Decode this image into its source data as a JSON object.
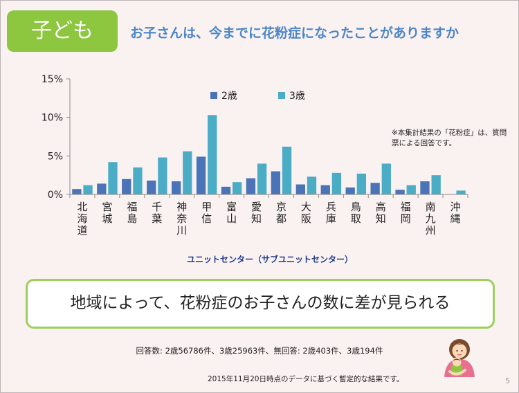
{
  "tag": "子ども",
  "title": "お子さんは、今までに花粉症になったことがありますか",
  "note": "※本集計結果の「花粉症」は、質問票による回答です。",
  "callout": "地域によって、花粉症のお子さんの数に差が見られる",
  "respondents": "回答数: 2歳56786件、3歳25963件、無回答: 2歳403件、3歳194件",
  "footer": "2015年11月20日時点のデータに基づく暫定的な結果です。",
  "page_number": "5",
  "colors": {
    "age2": "#4a73b8",
    "age3": "#4bacc6",
    "tag": "#8dc63f",
    "title": "#4a86c8",
    "callout_border": "#9bd05a",
    "background": "#faf1f1"
  },
  "illustration": "mother-and-child-icon",
  "chart_data": {
    "type": "bar",
    "xlabel": "ユニットセンター（サブユニットセンター）",
    "ylabel": "",
    "ylim": [
      0,
      15
    ],
    "y_ticks": [
      "0%",
      "5%",
      "10%",
      "15%"
    ],
    "grid": false,
    "legend_position": "top",
    "categories": [
      "北海道",
      "宮城",
      "福島",
      "千葉",
      "神奈川",
      "甲信",
      "富山",
      "愛知",
      "京都",
      "大阪",
      "兵庫",
      "鳥取",
      "高知",
      "福岡",
      "南九州",
      "沖縄"
    ],
    "series": [
      {
        "name": "2歳",
        "values": [
          0.7,
          1.4,
          2.0,
          1.8,
          1.7,
          4.9,
          1.0,
          2.1,
          3.0,
          1.3,
          1.2,
          0.9,
          1.5,
          0.6,
          1.7,
          0.0
        ]
      },
      {
        "name": "3歳",
        "values": [
          1.2,
          4.2,
          3.5,
          4.8,
          5.6,
          10.3,
          1.6,
          4.0,
          6.2,
          2.3,
          2.8,
          2.7,
          4.0,
          1.2,
          2.5,
          0.5
        ]
      }
    ]
  }
}
